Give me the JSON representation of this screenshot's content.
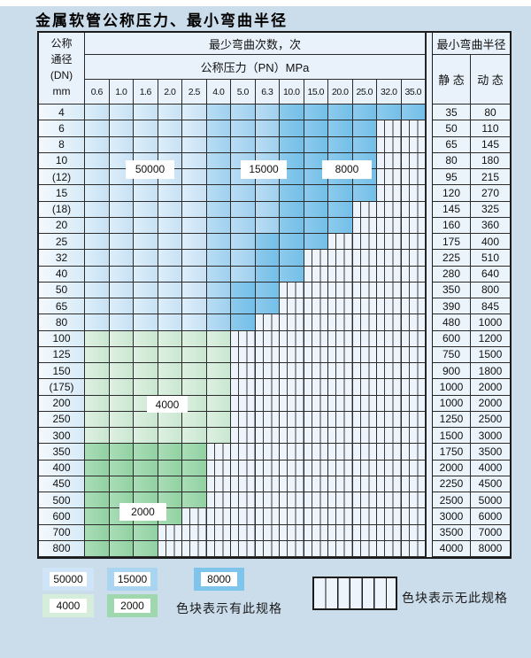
{
  "title": "金属软管公称压力、最小弯曲半径",
  "table": {
    "header": {
      "dn_lines": [
        "公称",
        "通径",
        "(DN)",
        "mm"
      ],
      "bend_cycles": "最少弯曲次数，次",
      "pressure": "公称压力（PN）MPa",
      "pressure_cols": [
        "0.6",
        "1.0",
        "1.6",
        "2.0",
        "2.5",
        "4.0",
        "5.0",
        "6.3",
        "10.0",
        "15.0",
        "20.0",
        "25.0",
        "32.0",
        "35.0"
      ],
      "bend_radius": "最小弯曲半径",
      "static_label": "静 态",
      "dynamic_label": "动 态"
    },
    "zone_labels": [
      "50000",
      "15000",
      "8000",
      "4000",
      "2000"
    ],
    "rows": [
      {
        "dn": "4",
        "static": "35",
        "dynamic": "80",
        "last": 14,
        "zone": "blue",
        "z15": 6,
        "z8": 9
      },
      {
        "dn": "6",
        "static": "50",
        "dynamic": "110",
        "last": 12,
        "zone": "blue",
        "z15": 6,
        "z8": 9
      },
      {
        "dn": "8",
        "static": "65",
        "dynamic": "145",
        "last": 12,
        "zone": "blue",
        "z15": 6,
        "z8": 9
      },
      {
        "dn": "10",
        "static": "80",
        "dynamic": "180",
        "last": 12,
        "zone": "blue",
        "z15": 6,
        "z8": 9
      },
      {
        "dn": "(12)",
        "static": "95",
        "dynamic": "215",
        "last": 12,
        "zone": "blue",
        "z15": 6,
        "z8": 9
      },
      {
        "dn": "15",
        "static": "120",
        "dynamic": "270",
        "last": 12,
        "zone": "blue",
        "z15": 6,
        "z8": 9
      },
      {
        "dn": "(18)",
        "static": "145",
        "dynamic": "325",
        "last": 11,
        "zone": "blue",
        "z15": 6,
        "z8": 9
      },
      {
        "dn": "20",
        "static": "160",
        "dynamic": "360",
        "last": 11,
        "zone": "blue",
        "z15": 6,
        "z8": 9
      },
      {
        "dn": "25",
        "static": "175",
        "dynamic": "400",
        "last": 10,
        "zone": "blue",
        "z15": 6,
        "z8": 8
      },
      {
        "dn": "32",
        "static": "225",
        "dynamic": "510",
        "last": 9,
        "zone": "blue",
        "z15": 6,
        "z8": 8
      },
      {
        "dn": "40",
        "static": "280",
        "dynamic": "640",
        "last": 9,
        "zone": "blue",
        "z15": 6,
        "z8": 8
      },
      {
        "dn": "50",
        "static": "350",
        "dynamic": "800",
        "last": 8,
        "zone": "blue",
        "z15": 6,
        "z8": 7
      },
      {
        "dn": "65",
        "static": "390",
        "dynamic": "845",
        "last": 8,
        "zone": "blue",
        "z15": 6,
        "z8": 7
      },
      {
        "dn": "80",
        "static": "480",
        "dynamic": "1000",
        "last": 7,
        "zone": "blue",
        "z15": 6,
        "z8": 7
      },
      {
        "dn": "100",
        "static": "600",
        "dynamic": "1200",
        "last": 6,
        "zone": "g4"
      },
      {
        "dn": "125",
        "static": "750",
        "dynamic": "1500",
        "last": 6,
        "zone": "g4"
      },
      {
        "dn": "150",
        "static": "900",
        "dynamic": "1800",
        "last": 6,
        "zone": "g4"
      },
      {
        "dn": "(175)",
        "static": "1000",
        "dynamic": "2000",
        "last": 6,
        "zone": "g4"
      },
      {
        "dn": "200",
        "static": "1000",
        "dynamic": "2000",
        "last": 6,
        "zone": "g4"
      },
      {
        "dn": "250",
        "static": "1250",
        "dynamic": "2500",
        "last": 6,
        "zone": "g4"
      },
      {
        "dn": "300",
        "static": "1500",
        "dynamic": "3000",
        "last": 6,
        "zone": "g4"
      },
      {
        "dn": "350",
        "static": "1750",
        "dynamic": "3500",
        "last": 5,
        "zone": "g2"
      },
      {
        "dn": "400",
        "static": "2000",
        "dynamic": "4000",
        "last": 5,
        "zone": "g2"
      },
      {
        "dn": "450",
        "static": "2250",
        "dynamic": "4500",
        "last": 5,
        "zone": "g2"
      },
      {
        "dn": "500",
        "static": "2500",
        "dynamic": "5000",
        "last": 5,
        "zone": "g2"
      },
      {
        "dn": "600",
        "static": "3000",
        "dynamic": "6000",
        "last": 4,
        "zone": "g2"
      },
      {
        "dn": "700",
        "static": "3500",
        "dynamic": "7000",
        "last": 3,
        "zone": "g2"
      },
      {
        "dn": "800",
        "static": "4000",
        "dynamic": "8000",
        "last": 3,
        "zone": "g2"
      }
    ]
  },
  "legend": {
    "blocks": [
      {
        "label": "50000",
        "zone": "b50"
      },
      {
        "label": "15000",
        "zone": "b15"
      },
      {
        "label": "8000",
        "zone": "b8"
      },
      {
        "label": "4000",
        "zone": "g4"
      },
      {
        "label": "2000",
        "zone": "g2"
      }
    ],
    "has_spec_text": "色块表示有此规格",
    "no_spec_text": "色块表示无此规格"
  },
  "colors": {
    "page_bg": "#cbdcea",
    "grid": "#2b2b2b",
    "b50": "#cfe4f6",
    "b15": "#a9d5f0",
    "b8": "#7fc4ea",
    "g4": "#d5edda",
    "g2": "#9fd7ae",
    "hatch_bg": "#eef4fb"
  }
}
